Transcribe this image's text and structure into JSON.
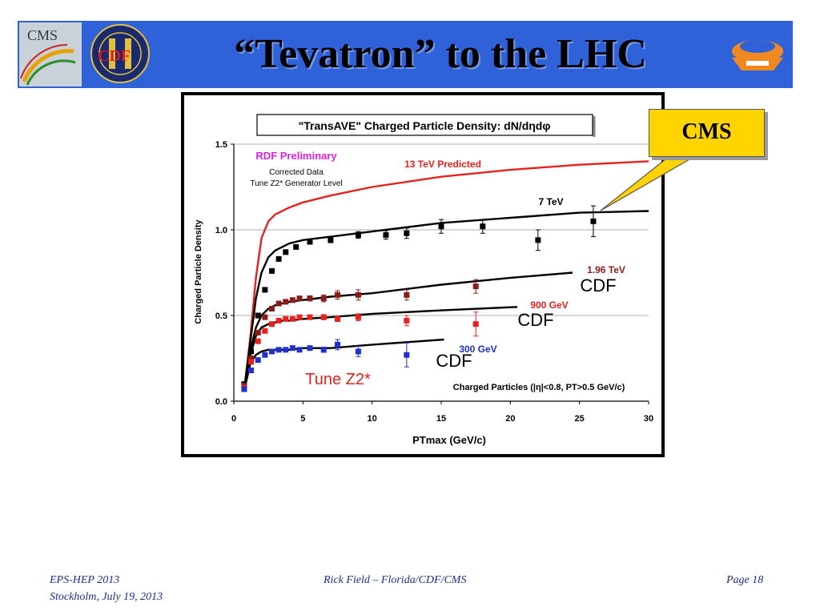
{
  "slide": {
    "title": "“Tevatron” to the LHC",
    "cms_callout": "CMS",
    "footer_left_line1": "EPS-HEP 2013",
    "footer_left_line2": "Stockholm, July 19, 2013",
    "footer_center": "Rick Field – Florida/CDF/CMS",
    "footer_right": "Page 18",
    "logos": {
      "left1": "CMS",
      "left2": "CDF"
    }
  },
  "colors": {
    "banner": "#2f62d8",
    "callout": "#ffd400",
    "cdf_1960": "#8b1a1a",
    "cdf_900": "#e8201e",
    "cdf_300": "#1f2fd0",
    "pred_13": "#e8201e",
    "cms_7": "#000000",
    "rdf_prelim": "#e020e0"
  },
  "chart_data": {
    "type": "scatter",
    "title": "\"TransAVE\" Charged Particle Density: dN/dηdφ",
    "xlabel": "PTmax  (GeV/c)",
    "ylabel": "Charged Particle Density",
    "xlim": [
      0,
      30
    ],
    "ylim": [
      0,
      1.5
    ],
    "xticks": [
      "0",
      "5",
      "10",
      "15",
      "20",
      "25",
      "30"
    ],
    "yticks": [
      "0.0",
      "0.5",
      "1.0",
      "1.5"
    ],
    "grid": "horizontal",
    "annotations": {
      "rdf": "RDF Preliminary",
      "corrected": "Corrected Data",
      "generator": "Tune Z2* Generator Level",
      "tune": "Tune Z2*",
      "cuts": "Charged Particles (|η|<0.8, PT>0.5 GeV/c)"
    },
    "curves": [
      {
        "name": "13 TeV Predicted",
        "color": "#e8201e",
        "x": [
          0.8,
          1.2,
          1.6,
          2.0,
          2.5,
          3.0,
          3.5,
          4.0,
          5,
          7,
          10,
          15,
          20,
          25,
          30
        ],
        "y": [
          0.1,
          0.38,
          0.72,
          0.95,
          1.05,
          1.09,
          1.11,
          1.13,
          1.16,
          1.2,
          1.25,
          1.31,
          1.35,
          1.38,
          1.4
        ]
      },
      {
        "name": "7 TeV",
        "color": "#000000",
        "x": [
          0.8,
          1.2,
          1.6,
          2.0,
          2.5,
          3.0,
          3.5,
          4.0,
          5,
          7,
          10,
          15,
          20,
          25,
          30
        ],
        "y": [
          0.1,
          0.35,
          0.6,
          0.75,
          0.84,
          0.88,
          0.9,
          0.92,
          0.94,
          0.96,
          0.99,
          1.04,
          1.07,
          1.1,
          1.11
        ]
      },
      {
        "name": "1.96 TeV",
        "color": "#000000",
        "x": [
          0.8,
          1.2,
          1.6,
          2.0,
          2.5,
          3.0,
          3.5,
          4.0,
          5,
          7,
          10,
          15,
          20,
          24.5
        ],
        "y": [
          0.1,
          0.3,
          0.43,
          0.5,
          0.54,
          0.56,
          0.57,
          0.58,
          0.59,
          0.61,
          0.63,
          0.68,
          0.72,
          0.75
        ]
      },
      {
        "name": "900 GeV",
        "color": "#000000",
        "x": [
          0.8,
          1.2,
          1.6,
          2.0,
          2.5,
          3.0,
          3.5,
          4.0,
          5,
          7,
          10,
          15,
          20.5
        ],
        "y": [
          0.1,
          0.27,
          0.38,
          0.43,
          0.45,
          0.46,
          0.47,
          0.47,
          0.48,
          0.49,
          0.51,
          0.53,
          0.55
        ]
      },
      {
        "name": "300 GeV",
        "color": "#000000",
        "x": [
          0.8,
          1.2,
          1.6,
          2.0,
          2.5,
          3.0,
          3.5,
          4.0,
          5,
          7,
          10,
          15.2
        ],
        "y": [
          0.08,
          0.22,
          0.27,
          0.29,
          0.3,
          0.3,
          0.3,
          0.3,
          0.31,
          0.31,
          0.33,
          0.36
        ]
      }
    ],
    "series": [
      {
        "name": "7 TeV",
        "color": "#000000",
        "x": [
          0.75,
          1.25,
          1.75,
          2.25,
          2.75,
          3.25,
          3.75,
          4.5,
          5.5,
          7,
          9,
          11,
          12.5,
          15,
          18,
          22,
          26
        ],
        "y": [
          0.1,
          0.29,
          0.5,
          0.65,
          0.76,
          0.83,
          0.87,
          0.9,
          0.93,
          0.94,
          0.97,
          0.97,
          0.98,
          1.02,
          1.02,
          0.94,
          1.05
        ],
        "err": [
          0.01,
          0.01,
          0.01,
          0.01,
          0.01,
          0.01,
          0.01,
          0.01,
          0.01,
          0.015,
          0.02,
          0.025,
          0.03,
          0.04,
          0.04,
          0.06,
          0.09
        ]
      },
      {
        "name": "1.96 TeV",
        "label": "1.96 TeV",
        "color": "#8b1a1a",
        "x": [
          0.75,
          1.25,
          1.75,
          2.25,
          2.75,
          3.25,
          3.75,
          4.25,
          4.75,
          5.5,
          6.5,
          7.5,
          9,
          12.5,
          17.5
        ],
        "y": [
          0.09,
          0.25,
          0.4,
          0.49,
          0.54,
          0.57,
          0.58,
          0.59,
          0.6,
          0.6,
          0.6,
          0.62,
          0.62,
          0.62,
          0.67
        ],
        "err": [
          0.01,
          0.01,
          0.01,
          0.01,
          0.01,
          0.01,
          0.01,
          0.01,
          0.01,
          0.015,
          0.02,
          0.025,
          0.03,
          0.03,
          0.04
        ]
      },
      {
        "name": "900 GeV",
        "label": "900 GeV",
        "color": "#e8201e",
        "x": [
          0.75,
          1.25,
          1.75,
          2.25,
          2.75,
          3.25,
          3.75,
          4.25,
          4.75,
          5.5,
          6.5,
          7.5,
          9,
          12.5,
          17.5
        ],
        "y": [
          0.08,
          0.23,
          0.35,
          0.41,
          0.45,
          0.47,
          0.48,
          0.48,
          0.49,
          0.49,
          0.49,
          0.48,
          0.49,
          0.47,
          0.45
        ],
        "err": [
          0.01,
          0.01,
          0.01,
          0.01,
          0.01,
          0.01,
          0.01,
          0.01,
          0.01,
          0.01,
          0.015,
          0.015,
          0.02,
          0.03,
          0.07
        ]
      },
      {
        "name": "300 GeV",
        "label": "300 GeV",
        "color": "#1f2fd0",
        "x": [
          0.75,
          1.25,
          1.75,
          2.25,
          2.75,
          3.25,
          3.75,
          4.25,
          4.75,
          5.5,
          6.5,
          7.5,
          9,
          12.5
        ],
        "y": [
          0.07,
          0.18,
          0.24,
          0.27,
          0.29,
          0.3,
          0.3,
          0.31,
          0.3,
          0.31,
          0.3,
          0.33,
          0.29,
          0.27
        ],
        "err": [
          0.01,
          0.01,
          0.01,
          0.01,
          0.01,
          0.01,
          0.01,
          0.01,
          0.01,
          0.01,
          0.015,
          0.03,
          0.03,
          0.07
        ]
      }
    ],
    "curve_labels": [
      {
        "text": "13 TeV Predicted",
        "color": "#e8201e"
      },
      {
        "text": "7 TeV",
        "color": "#000000"
      },
      {
        "text": "1.96 TeV",
        "color": "#8b1a1a"
      },
      {
        "text": "900 GeV",
        "color": "#e8201e"
      },
      {
        "text": "300 GeV",
        "color": "#1f2fd0"
      }
    ],
    "cdf_labels": [
      "CDF",
      "CDF",
      "CDF"
    ]
  }
}
